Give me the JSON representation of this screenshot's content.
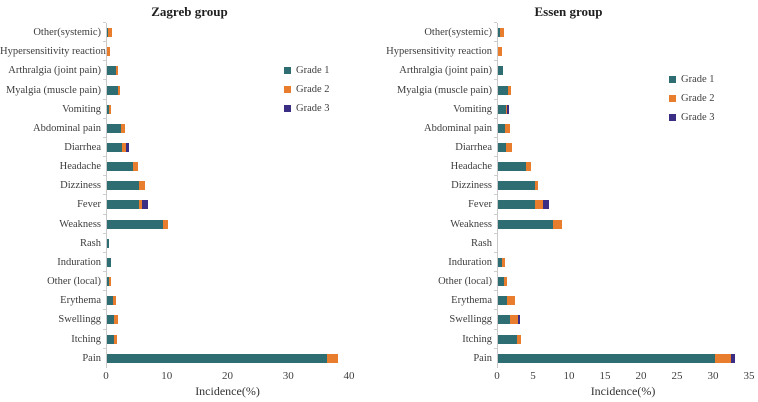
{
  "chart_data": [
    {
      "type": "bar",
      "orientation": "horizontal-stacked",
      "title": "Zagreb group",
      "xlabel": "Incidence(%)",
      "xlim": [
        0,
        40
      ],
      "xticks": [
        0,
        10,
        20,
        30,
        40
      ],
      "grid": false,
      "legend_position": "inside-right",
      "categories": [
        "Other(systemic)",
        "Hypersensitivity reaction",
        "Arthralgia (joint pain)",
        "Myalgia (muscle pain)",
        "Vomiting",
        "Abdominal pain",
        "Diarrhea",
        "Headache",
        "Dizziness",
        "Fever",
        "Weakness",
        "Rash",
        "Induration",
        "Other (local)",
        "Erythema",
        "Swellingg",
        "Itching",
        "Pain"
      ],
      "series": [
        {
          "name": "Grade 1",
          "color": "#2e6e72",
          "values": [
            0.2,
            0,
            1.4,
            1.8,
            0.4,
            2.3,
            2.4,
            4.2,
            5.2,
            5.2,
            9.2,
            0.25,
            0.7,
            0.25,
            1.0,
            1.2,
            1.15,
            36.2
          ]
        },
        {
          "name": "Grade 2",
          "color": "#e87d2e",
          "values": [
            0.7,
            0.5,
            0.35,
            0.4,
            0.3,
            0.7,
            0.7,
            0.9,
            1.0,
            0.6,
            0.9,
            0,
            0,
            0.4,
            0.45,
            0.65,
            0.45,
            1.8
          ]
        },
        {
          "name": "Grade 3",
          "color": "#3a2d84",
          "values": [
            0,
            0,
            0,
            0,
            0,
            0,
            0.5,
            0,
            0,
            1.0,
            0,
            0,
            0,
            0,
            0,
            0,
            0,
            0
          ]
        }
      ]
    },
    {
      "type": "bar",
      "orientation": "horizontal-stacked",
      "title": "Essen group",
      "xlabel": "Incidence(%)",
      "xlim": [
        0,
        35
      ],
      "xticks": [
        0,
        5,
        10,
        15,
        20,
        25,
        30,
        35
      ],
      "grid": false,
      "legend_position": "inside-right",
      "categories": [
        "Other(systemic)",
        "Hypersensitivity reaction",
        "Arthralgia (joint pain)",
        "Myalgia (muscle pain)",
        "Vomiting",
        "Abdominal pain",
        "Diarrhea",
        "Headache",
        "Dizziness",
        "Fever",
        "Weakness",
        "Rash",
        "Induration",
        "Other (local)",
        "Erythema",
        "Swellingg",
        "Itching",
        "Pain"
      ],
      "series": [
        {
          "name": "Grade 1",
          "color": "#2e6e72",
          "values": [
            0.3,
            0,
            0.75,
            1.4,
            1.05,
            1.0,
            1.15,
            3.85,
            5.1,
            5.1,
            7.7,
            0,
            0.6,
            0.9,
            1.3,
            1.7,
            2.6,
            30.1
          ]
        },
        {
          "name": "Grade 2",
          "color": "#e87d2e",
          "values": [
            0.5,
            0.55,
            0,
            0.4,
            0.15,
            0.65,
            0.85,
            0.8,
            0.45,
            1.1,
            1.2,
            0,
            0.4,
            0.4,
            1.0,
            1.1,
            0.6,
            2.2
          ]
        },
        {
          "name": "Grade 3",
          "color": "#3a2d84",
          "values": [
            0,
            0,
            0,
            0,
            0.3,
            0,
            0,
            0,
            0,
            0.9,
            0,
            0,
            0,
            0,
            0,
            0.3,
            0,
            0.6
          ]
        }
      ]
    }
  ]
}
